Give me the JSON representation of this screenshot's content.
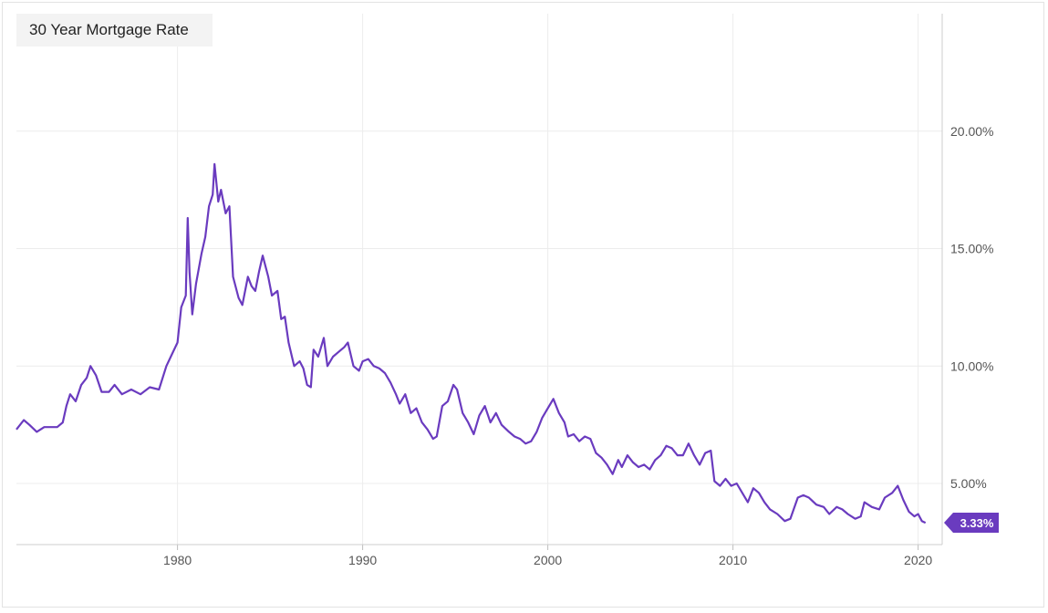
{
  "chart_data": {
    "type": "line",
    "title": "30 Year Mortgage Rate",
    "xlabel": "",
    "ylabel": "",
    "xlim": [
      1971.3,
      2021.3
    ],
    "ylim": [
      2.4,
      25.0
    ],
    "grid": true,
    "y_ticks": [
      {
        "value": 5,
        "label": "5.00%"
      },
      {
        "value": 10,
        "label": "10.00%"
      },
      {
        "value": 15,
        "label": "15.00%"
      },
      {
        "value": 20,
        "label": "20.00%"
      }
    ],
    "x_ticks": [
      {
        "value": 1980,
        "label": "1980"
      },
      {
        "value": 1990,
        "label": "1990"
      },
      {
        "value": 2000,
        "label": "2000"
      },
      {
        "value": 2010,
        "label": "2010"
      },
      {
        "value": 2020,
        "label": "2020"
      }
    ],
    "series": [
      {
        "name": "",
        "color": "#6a3bbf",
        "last_value_label": "3.33%",
        "points": [
          [
            1971.3,
            7.3
          ],
          [
            1971.7,
            7.7
          ],
          [
            1972.0,
            7.5
          ],
          [
            1972.4,
            7.2
          ],
          [
            1972.8,
            7.4
          ],
          [
            1973.5,
            7.4
          ],
          [
            1973.8,
            7.6
          ],
          [
            1974.0,
            8.3
          ],
          [
            1974.2,
            8.8
          ],
          [
            1974.5,
            8.5
          ],
          [
            1974.8,
            9.2
          ],
          [
            1975.1,
            9.5
          ],
          [
            1975.3,
            10.0
          ],
          [
            1975.6,
            9.6
          ],
          [
            1975.9,
            8.9
          ],
          [
            1976.3,
            8.9
          ],
          [
            1976.6,
            9.2
          ],
          [
            1977.0,
            8.8
          ],
          [
            1977.5,
            9.0
          ],
          [
            1978.0,
            8.8
          ],
          [
            1978.5,
            9.1
          ],
          [
            1979.0,
            9.0
          ],
          [
            1979.4,
            10.0
          ],
          [
            1979.7,
            10.5
          ],
          [
            1980.0,
            11.0
          ],
          [
            1980.2,
            12.5
          ],
          [
            1980.45,
            13.0
          ],
          [
            1980.55,
            16.3
          ],
          [
            1980.65,
            14.0
          ],
          [
            1980.8,
            12.2
          ],
          [
            1981.0,
            13.5
          ],
          [
            1981.3,
            14.8
          ],
          [
            1981.5,
            15.5
          ],
          [
            1981.7,
            16.8
          ],
          [
            1981.9,
            17.3
          ],
          [
            1982.0,
            18.6
          ],
          [
            1982.2,
            17.0
          ],
          [
            1982.35,
            17.5
          ],
          [
            1982.6,
            16.5
          ],
          [
            1982.8,
            16.8
          ],
          [
            1983.0,
            13.8
          ],
          [
            1983.3,
            12.9
          ],
          [
            1983.5,
            12.6
          ],
          [
            1983.8,
            13.8
          ],
          [
            1984.0,
            13.4
          ],
          [
            1984.2,
            13.2
          ],
          [
            1984.4,
            14.0
          ],
          [
            1984.6,
            14.7
          ],
          [
            1984.9,
            13.8
          ],
          [
            1985.1,
            13.0
          ],
          [
            1985.4,
            13.2
          ],
          [
            1985.6,
            12.0
          ],
          [
            1985.8,
            12.1
          ],
          [
            1986.0,
            11.0
          ],
          [
            1986.3,
            10.0
          ],
          [
            1986.6,
            10.2
          ],
          [
            1986.8,
            9.9
          ],
          [
            1987.0,
            9.2
          ],
          [
            1987.2,
            9.1
          ],
          [
            1987.35,
            10.7
          ],
          [
            1987.6,
            10.4
          ],
          [
            1987.9,
            11.2
          ],
          [
            1988.1,
            10.0
          ],
          [
            1988.4,
            10.4
          ],
          [
            1988.7,
            10.6
          ],
          [
            1989.0,
            10.8
          ],
          [
            1989.2,
            11.0
          ],
          [
            1989.5,
            10.0
          ],
          [
            1989.8,
            9.8
          ],
          [
            1990.0,
            10.2
          ],
          [
            1990.3,
            10.3
          ],
          [
            1990.6,
            10.0
          ],
          [
            1990.9,
            9.9
          ],
          [
            1991.2,
            9.7
          ],
          [
            1991.5,
            9.3
          ],
          [
            1991.8,
            8.8
          ],
          [
            1992.0,
            8.4
          ],
          [
            1992.3,
            8.8
          ],
          [
            1992.6,
            8.0
          ],
          [
            1992.9,
            8.2
          ],
          [
            1993.2,
            7.6
          ],
          [
            1993.5,
            7.3
          ],
          [
            1993.8,
            6.9
          ],
          [
            1994.0,
            7.0
          ],
          [
            1994.3,
            8.3
          ],
          [
            1994.6,
            8.5
          ],
          [
            1994.9,
            9.2
          ],
          [
            1995.1,
            9.0
          ],
          [
            1995.4,
            8.0
          ],
          [
            1995.7,
            7.6
          ],
          [
            1996.0,
            7.1
          ],
          [
            1996.3,
            7.9
          ],
          [
            1996.6,
            8.3
          ],
          [
            1996.9,
            7.6
          ],
          [
            1997.2,
            8.0
          ],
          [
            1997.5,
            7.5
          ],
          [
            1997.9,
            7.2
          ],
          [
            1998.2,
            7.0
          ],
          [
            1998.5,
            6.9
          ],
          [
            1998.8,
            6.7
          ],
          [
            1999.1,
            6.8
          ],
          [
            1999.4,
            7.2
          ],
          [
            1999.7,
            7.8
          ],
          [
            2000.0,
            8.2
          ],
          [
            2000.3,
            8.6
          ],
          [
            2000.6,
            8.0
          ],
          [
            2000.9,
            7.6
          ],
          [
            2001.1,
            7.0
          ],
          [
            2001.4,
            7.1
          ],
          [
            2001.7,
            6.8
          ],
          [
            2002.0,
            7.0
          ],
          [
            2002.3,
            6.9
          ],
          [
            2002.6,
            6.3
          ],
          [
            2002.9,
            6.1
          ],
          [
            2003.2,
            5.8
          ],
          [
            2003.5,
            5.4
          ],
          [
            2003.8,
            6.0
          ],
          [
            2004.0,
            5.7
          ],
          [
            2004.3,
            6.2
          ],
          [
            2004.6,
            5.9
          ],
          [
            2004.9,
            5.7
          ],
          [
            2005.2,
            5.8
          ],
          [
            2005.5,
            5.6
          ],
          [
            2005.8,
            6.0
          ],
          [
            2006.1,
            6.2
          ],
          [
            2006.4,
            6.6
          ],
          [
            2006.7,
            6.5
          ],
          [
            2007.0,
            6.2
          ],
          [
            2007.3,
            6.2
          ],
          [
            2007.6,
            6.7
          ],
          [
            2007.9,
            6.2
          ],
          [
            2008.2,
            5.8
          ],
          [
            2008.5,
            6.3
          ],
          [
            2008.8,
            6.4
          ],
          [
            2009.0,
            5.1
          ],
          [
            2009.3,
            4.9
          ],
          [
            2009.6,
            5.2
          ],
          [
            2009.9,
            4.9
          ],
          [
            2010.2,
            5.0
          ],
          [
            2010.5,
            4.6
          ],
          [
            2010.8,
            4.2
          ],
          [
            2011.1,
            4.8
          ],
          [
            2011.4,
            4.6
          ],
          [
            2011.7,
            4.2
          ],
          [
            2012.0,
            3.9
          ],
          [
            2012.4,
            3.7
          ],
          [
            2012.8,
            3.4
          ],
          [
            2013.1,
            3.5
          ],
          [
            2013.5,
            4.4
          ],
          [
            2013.8,
            4.5
          ],
          [
            2014.1,
            4.4
          ],
          [
            2014.5,
            4.1
          ],
          [
            2014.9,
            4.0
          ],
          [
            2015.2,
            3.7
          ],
          [
            2015.6,
            4.0
          ],
          [
            2015.9,
            3.9
          ],
          [
            2016.2,
            3.7
          ],
          [
            2016.6,
            3.5
          ],
          [
            2016.9,
            3.6
          ],
          [
            2017.1,
            4.2
          ],
          [
            2017.5,
            4.0
          ],
          [
            2017.9,
            3.9
          ],
          [
            2018.2,
            4.4
          ],
          [
            2018.6,
            4.6
          ],
          [
            2018.9,
            4.9
          ],
          [
            2019.2,
            4.3
          ],
          [
            2019.5,
            3.8
          ],
          [
            2019.8,
            3.6
          ],
          [
            2020.0,
            3.7
          ],
          [
            2020.2,
            3.4
          ],
          [
            2020.4,
            3.33
          ]
        ]
      }
    ]
  }
}
